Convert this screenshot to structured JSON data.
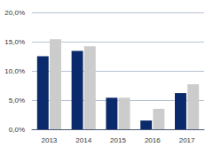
{
  "chart_data": {
    "type": "bar",
    "categories": [
      "2013",
      "2014",
      "2015",
      "2016",
      "2017"
    ],
    "series": [
      {
        "color": "#0b2a6b",
        "values": [
          12.5,
          13.4,
          5.4,
          1.5,
          6.2
        ]
      },
      {
        "color": "#cccccc",
        "values": [
          15.4,
          14.2,
          5.4,
          3.5,
          7.7
        ]
      }
    ],
    "ylim": [
      0,
      20
    ],
    "yticks": [
      {
        "value": 0,
        "label": "0,0%"
      },
      {
        "value": 5,
        "label": "5,0%"
      },
      {
        "value": 10,
        "label": "10,0%"
      },
      {
        "value": 15,
        "label": "15,0%"
      },
      {
        "value": 20,
        "label": "20,0%"
      }
    ],
    "grid": true
  }
}
